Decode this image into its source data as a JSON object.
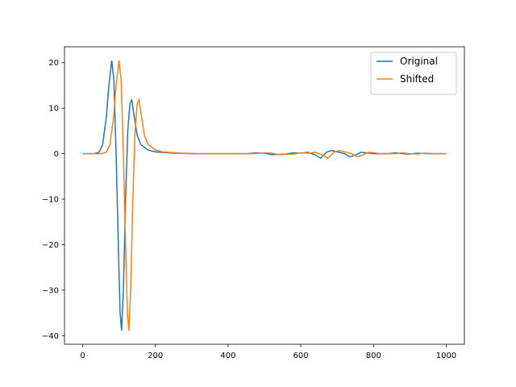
{
  "chart_data": {
    "type": "line",
    "xlim": [
      -50,
      1050
    ],
    "ylim": [
      -41.9,
      23.5
    ],
    "xticks": [
      0,
      200,
      400,
      600,
      800,
      1000
    ],
    "yticks": [
      {
        "value": -40,
        "label": "−40"
      },
      {
        "value": -30,
        "label": "−30"
      },
      {
        "value": -20,
        "label": "−20"
      },
      {
        "value": -10,
        "label": "−10"
      },
      0,
      10,
      20
    ],
    "legend": "upper right",
    "series": [
      {
        "name": "Original",
        "color": "#1f77b4",
        "x": [
          0,
          30,
          45,
          55,
          65,
          72,
          80,
          86,
          92,
          98,
          103,
          107,
          112,
          118,
          124,
          130,
          135,
          142,
          150,
          160,
          180,
          200,
          250,
          300,
          450,
          480,
          500,
          520,
          560,
          580,
          600,
          620,
          640,
          655,
          670,
          685,
          700,
          720,
          735,
          750,
          765,
          780,
          800,
          840,
          860,
          880,
          900,
          920,
          950,
          1000
        ],
        "values": [
          0,
          0,
          0.3,
          2,
          8,
          15,
          20.5,
          16,
          0,
          -20,
          -35,
          -38.9,
          -30,
          -10,
          5,
          11,
          11.8,
          8,
          4,
          2,
          0.8,
          0.4,
          0.1,
          0,
          0,
          0.2,
          0.1,
          -0.2,
          -0.1,
          0.2,
          0.1,
          0.3,
          -0.3,
          -1,
          0.3,
          0.7,
          0.4,
          0,
          -0.7,
          -0.3,
          0.3,
          0.2,
          0,
          0,
          0.2,
          0,
          -0.1,
          0.1,
          0,
          0
        ]
      },
      {
        "name": "Shifted",
        "color": "#ff7f0e",
        "x": [
          0,
          50,
          65,
          75,
          85,
          92,
          100,
          106,
          112,
          118,
          123,
          127,
          132,
          138,
          144,
          150,
          155,
          162,
          170,
          180,
          200,
          220,
          270,
          320,
          470,
          500,
          520,
          540,
          580,
          600,
          620,
          640,
          660,
          675,
          690,
          705,
          720,
          740,
          755,
          770,
          785,
          800,
          820,
          860,
          880,
          900,
          920,
          940,
          970,
          1000
        ],
        "values": [
          0,
          0,
          0.3,
          2,
          8,
          15,
          20.5,
          16,
          0,
          -20,
          -35,
          -38.9,
          -30,
          -10,
          5,
          11,
          11.8,
          8,
          4,
          2,
          0.8,
          0.4,
          0.1,
          0,
          0,
          0.2,
          0.1,
          -0.2,
          -0.1,
          0.2,
          0.1,
          0.3,
          -0.3,
          -1,
          0.3,
          0.7,
          0.4,
          0,
          -0.7,
          -0.3,
          0.3,
          0.2,
          0,
          0,
          0.2,
          0,
          -0.1,
          0.1,
          0,
          0
        ]
      }
    ]
  }
}
